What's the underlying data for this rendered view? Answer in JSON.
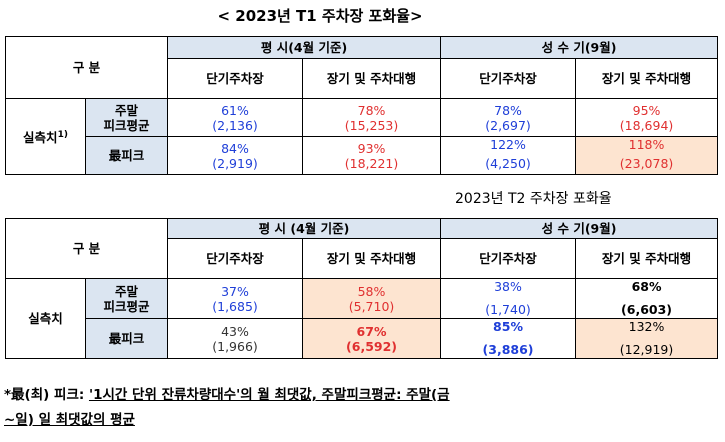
{
  "table1": {
    "title": "<  2023년 T1 주차장 포화율>",
    "col_group": "구 분",
    "normal_header": "평  시(4월 기준)",
    "peak_header": "성 수 기(9월)",
    "sub_short": "단기주차장",
    "sub_long": "장기 및 주차대행",
    "row_group": "실측치",
    "row_group_sup": "1)",
    "row1_label": "주말\n피크평균",
    "row2_label": "最피크",
    "row1": [
      {
        "pct": "61%",
        "num": "(2,136)"
      },
      {
        "pct": "78%",
        "num": "(15,253)"
      },
      {
        "pct": "78%",
        "num": "(2,697)"
      },
      {
        "pct": "95%",
        "num": "(18,694)"
      }
    ],
    "row2": [
      {
        "pct": "84%",
        "num": "(2,919)"
      },
      {
        "pct": "93%",
        "num": "(18,221)"
      },
      {
        "pct": "122%",
        "num": "(4,250)"
      },
      {
        "pct": "118%",
        "num": "(23,078)"
      }
    ]
  },
  "table2": {
    "title": "2023년  T2  주차장  포화율",
    "col_group": "구 분",
    "normal_header": "평   시 (4월 기준)",
    "peak_header": "성 수 기(9월)",
    "sub_short": "단기주차장",
    "sub_long": "장기  및  주차대행",
    "row_group": "실측치",
    "row1_label": "주말\n피크평균",
    "row2_label": "最피크",
    "row1": [
      {
        "pct": "37%",
        "num": "(1,685)"
      },
      {
        "pct": "58%",
        "num": "(5,710)"
      },
      {
        "pct": "38%",
        "num": "(1,740)"
      },
      {
        "pct": "68%",
        "num": "(6,603)"
      }
    ],
    "row2": [
      {
        "pct": "43%",
        "num": "(1,966)"
      },
      {
        "pct": "67%",
        "num": "(6,592)"
      },
      {
        "pct": "85%",
        "num": "(3,886)"
      },
      {
        "pct": "132%",
        "num": "(12,919)"
      }
    ]
  },
  "footnote": {
    "prefix": "*最(최) 피크: ",
    "underlined": "'1시간 단위 잔류차량대수'의 월 최댓값, 주말피크평균: 주말(금",
    "line2": "~일) 일 최댓값의 평균"
  },
  "colors": {
    "header_bg": "#dbe5f1",
    "highlight_bg": "#fde4d0",
    "blue_text": "#1f3fd8",
    "red_text": "#e03030"
  }
}
